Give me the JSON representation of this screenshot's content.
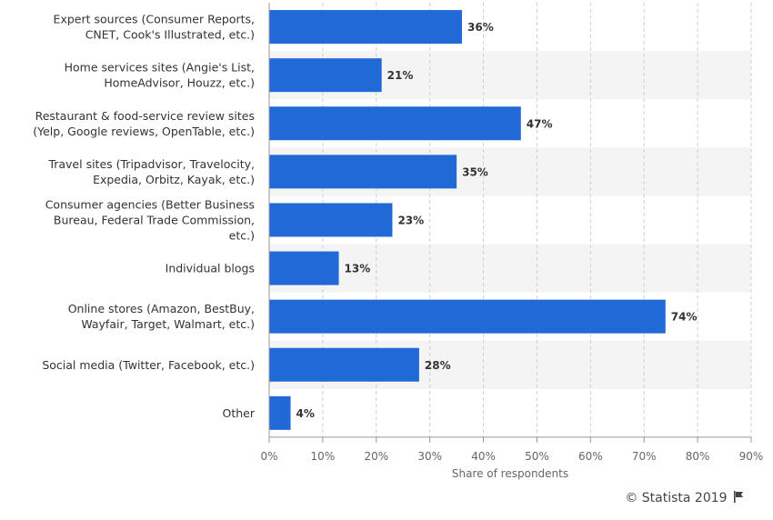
{
  "chart_data": {
    "type": "bar",
    "orientation": "horizontal",
    "categories": [
      [
        "Expert sources (Consumer Reports,",
        "CNET, Cook's Illustrated, etc.)"
      ],
      [
        "Home services sites (Angie's List,",
        "HomeAdvisor, Houzz, etc.)"
      ],
      [
        "Restaurant & food-service review sites",
        "(Yelp, Google reviews, OpenTable, etc.)"
      ],
      [
        "Travel sites (Tripadvisor, Travelocity,",
        "Expedia, Orbitz, Kayak, etc.)"
      ],
      [
        "Consumer agencies (Better Business",
        "Bureau, Federal Trade Commission,",
        "etc.)"
      ],
      [
        "Individual blogs"
      ],
      [
        "Online stores (Amazon, BestBuy,",
        "Wayfair, Target, Walmart, etc.)"
      ],
      [
        "Social media (Twitter, Facebook, etc.)"
      ],
      [
        "Other"
      ]
    ],
    "values": [
      36,
      21,
      47,
      35,
      23,
      13,
      74,
      28,
      4
    ],
    "value_labels": [
      "36%",
      "21%",
      "47%",
      "35%",
      "23%",
      "13%",
      "74%",
      "28%",
      "4%"
    ],
    "xlabel": "Share of respondents",
    "ylabel": "",
    "xlim": [
      0,
      90
    ],
    "xticks": [
      0,
      10,
      20,
      30,
      40,
      50,
      60,
      70,
      80,
      90
    ],
    "xtick_labels": [
      "0%",
      "10%",
      "20%",
      "30%",
      "40%",
      "50%",
      "60%",
      "70%",
      "80%",
      "90%"
    ],
    "grid": true,
    "bar_color": "#2169d6",
    "band_color": "#f4f4f4",
    "grid_color": "#cfcfcf"
  },
  "credit": {
    "text": "© Statista 2019",
    "icon": "flag-icon"
  }
}
